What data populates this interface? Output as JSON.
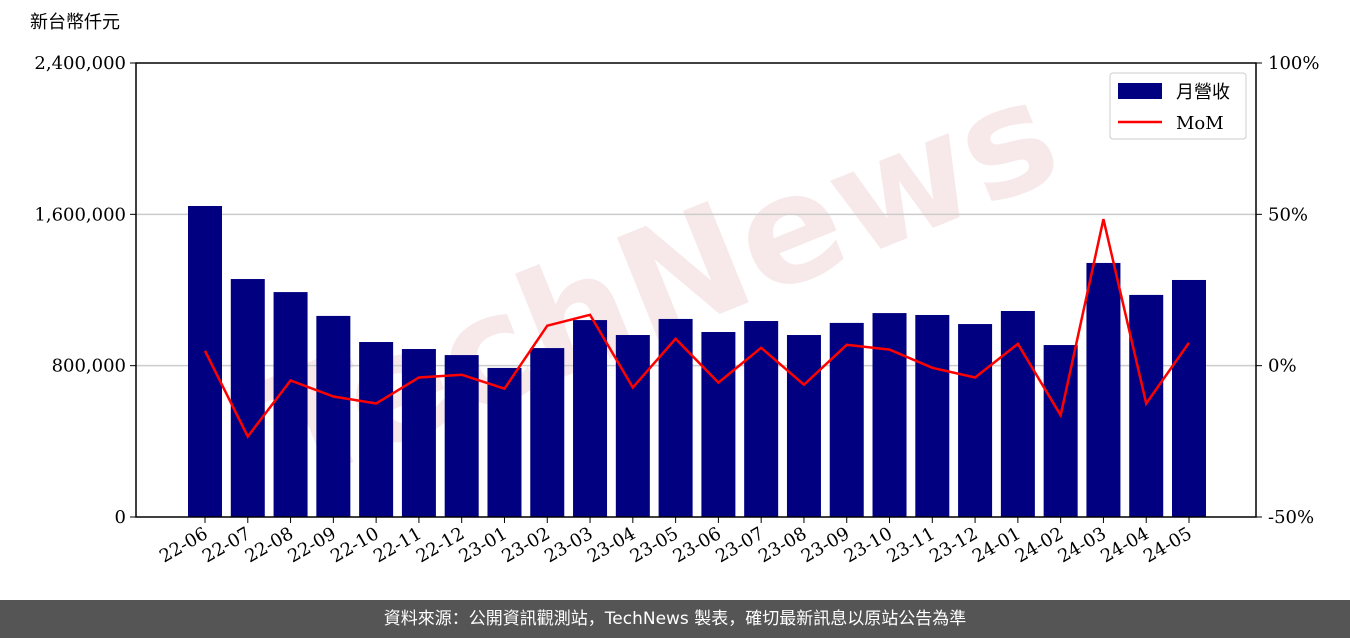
{
  "chart_data": {
    "type": "bar_line",
    "y_label": "新台幣仟元",
    "watermark": "TechNews",
    "categories": [
      "22-06",
      "22-07",
      "22-08",
      "22-09",
      "22-10",
      "22-11",
      "22-12",
      "23-01",
      "23-02",
      "23-03",
      "23-04",
      "23-05",
      "23-06",
      "23-07",
      "23-08",
      "23-09",
      "23-10",
      "23-11",
      "23-12",
      "24-01",
      "24-02",
      "24-03",
      "24-04",
      "24-05"
    ],
    "series": [
      {
        "name": "月營收",
        "type": "bar",
        "color": "#000080",
        "values": [
          1644000,
          1258000,
          1189000,
          1063000,
          925000,
          888000,
          856000,
          788000,
          893000,
          1041000,
          962000,
          1047000,
          978000,
          1036000,
          962000,
          1026000,
          1078000,
          1068000,
          1020000,
          1089000,
          909000,
          1343000,
          1174000,
          1253000
        ]
      },
      {
        "name": "MoM",
        "type": "line",
        "axis": "y2",
        "color": "#ff0000",
        "values": [
          4.9,
          -23.4,
          -4.9,
          -10.2,
          -12.5,
          -3.9,
          -3.0,
          -7.6,
          13.2,
          16.8,
          -7.2,
          8.9,
          -5.6,
          5.9,
          -6.3,
          6.9,
          5.3,
          -0.7,
          -3.9,
          7.2,
          -16.4,
          48.4,
          -12.5,
          7.6
        ]
      }
    ],
    "ylim": [
      0,
      2400000
    ],
    "yticks": [
      0,
      {
        "value": 800000,
        "label": "800,000"
      },
      {
        "value": 1600000,
        "label": "1,600,000"
      },
      {
        "value": 2400000,
        "label": "2,400,000"
      }
    ],
    "y2lim": [
      -50,
      100
    ],
    "y2ticks": [
      {
        "value": -50,
        "label": "-50%"
      },
      {
        "value": 0,
        "label": "0%"
      },
      {
        "value": 50,
        "label": "50%"
      },
      {
        "value": 100,
        "label": "100%"
      }
    ],
    "grid": true,
    "legend": "upper right"
  },
  "footer": "資料來源：公開資訊觀測站，TechNews 製表，確切最新訊息以原站公告為準"
}
